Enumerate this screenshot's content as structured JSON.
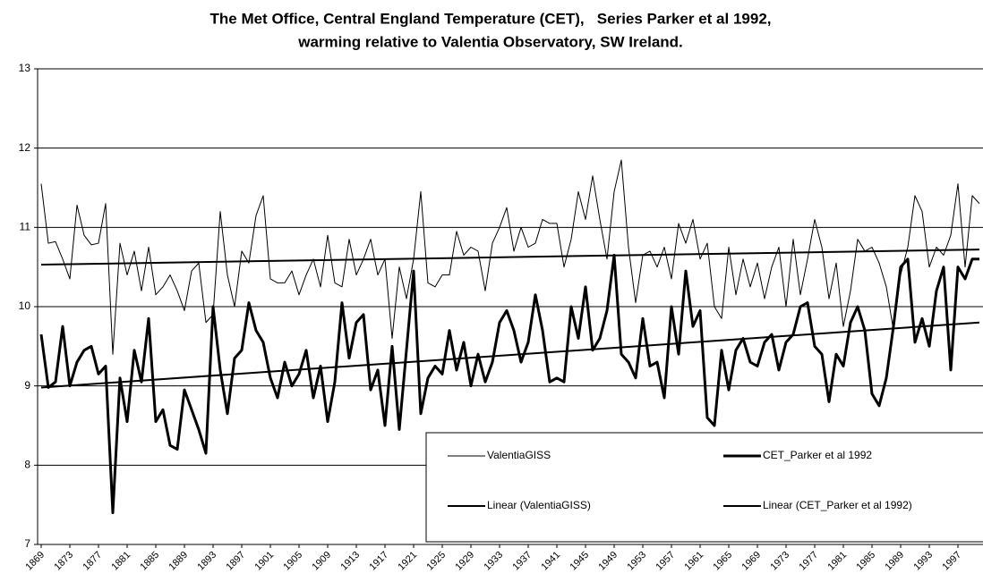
{
  "chart_data": {
    "type": "line",
    "title": [
      "The Met Office, Central England Temperature (CET),   Series Parker et al 1992,",
      "warming relative to Valentia Observatory, SW Ireland."
    ],
    "x": [
      1869,
      1870,
      1871,
      1872,
      1873,
      1874,
      1875,
      1876,
      1877,
      1878,
      1879,
      1880,
      1881,
      1882,
      1883,
      1884,
      1885,
      1886,
      1887,
      1888,
      1889,
      1890,
      1891,
      1892,
      1893,
      1894,
      1895,
      1896,
      1897,
      1898,
      1899,
      1900,
      1901,
      1902,
      1903,
      1904,
      1905,
      1906,
      1907,
      1908,
      1909,
      1910,
      1911,
      1912,
      1913,
      1914,
      1915,
      1916,
      1917,
      1918,
      1919,
      1920,
      1921,
      1922,
      1923,
      1924,
      1925,
      1926,
      1927,
      1928,
      1929,
      1930,
      1931,
      1932,
      1933,
      1934,
      1935,
      1936,
      1937,
      1938,
      1939,
      1940,
      1941,
      1942,
      1943,
      1944,
      1945,
      1946,
      1947,
      1948,
      1949,
      1950,
      1951,
      1952,
      1953,
      1954,
      1955,
      1956,
      1957,
      1958,
      1959,
      1960,
      1961,
      1962,
      1963,
      1964,
      1965,
      1966,
      1967,
      1968,
      1969,
      1970,
      1971,
      1972,
      1973,
      1974,
      1975,
      1976,
      1977,
      1978,
      1979,
      1980,
      1981,
      1982,
      1983,
      1984,
      1985,
      1986,
      1987,
      1988,
      1989,
      1990,
      1991,
      1992,
      1993,
      1994,
      1995,
      1996,
      1997,
      1998,
      1999,
      2000
    ],
    "series": [
      {
        "name": "ValentiaGISS",
        "color": "#000000",
        "line_width": 1,
        "values": [
          11.55,
          10.8,
          10.82,
          10.6,
          10.35,
          11.28,
          10.9,
          10.78,
          10.8,
          11.3,
          9.4,
          10.8,
          10.4,
          10.7,
          10.2,
          10.75,
          10.15,
          10.25,
          10.4,
          10.2,
          9.95,
          10.45,
          10.55,
          9.8,
          9.9,
          11.2,
          10.4,
          10.0,
          10.7,
          10.55,
          11.15,
          11.4,
          10.35,
          10.3,
          10.3,
          10.45,
          10.15,
          10.4,
          10.6,
          10.25,
          10.9,
          10.3,
          10.25,
          10.85,
          10.4,
          10.6,
          10.85,
          10.4,
          10.6,
          9.6,
          10.5,
          10.1,
          10.6,
          11.45,
          10.3,
          10.25,
          10.4,
          10.4,
          10.95,
          10.65,
          10.75,
          10.7,
          10.2,
          10.8,
          11.0,
          11.25,
          10.7,
          11.0,
          10.75,
          10.8,
          11.1,
          11.05,
          11.05,
          10.5,
          10.85,
          11.45,
          11.1,
          11.65,
          11.1,
          10.6,
          11.45,
          11.85,
          10.75,
          10.05,
          10.65,
          10.7,
          10.5,
          10.75,
          10.35,
          11.05,
          10.8,
          11.1,
          10.6,
          10.8,
          10.0,
          9.85,
          10.75,
          10.15,
          10.6,
          10.25,
          10.55,
          10.1,
          10.5,
          10.75,
          10.0,
          10.85,
          10.15,
          10.6,
          11.1,
          10.75,
          10.1,
          10.55,
          9.75,
          10.2,
          10.85,
          10.7,
          10.75,
          10.55,
          10.25,
          9.7,
          10.4,
          10.75,
          11.4,
          11.2,
          10.5,
          10.75,
          10.65,
          10.9,
          11.55,
          10.5,
          11.4,
          11.3
        ]
      },
      {
        "name": "CET_Parker et al 1992",
        "color": "#000000",
        "line_width": 3,
        "values": [
          9.65,
          8.98,
          9.05,
          9.75,
          9.0,
          9.3,
          9.45,
          9.5,
          9.15,
          9.25,
          7.4,
          9.1,
          8.55,
          9.45,
          9.05,
          9.85,
          8.55,
          8.7,
          8.25,
          8.2,
          8.95,
          8.7,
          8.45,
          8.15,
          10.0,
          9.2,
          8.65,
          9.35,
          9.45,
          10.05,
          9.7,
          9.55,
          9.1,
          8.85,
          9.3,
          9.0,
          9.15,
          9.45,
          8.85,
          9.25,
          8.55,
          9.05,
          10.05,
          9.35,
          9.8,
          9.9,
          8.95,
          9.2,
          8.5,
          9.5,
          8.45,
          9.45,
          10.45,
          8.65,
          9.1,
          9.25,
          9.15,
          9.7,
          9.2,
          9.55,
          9.0,
          9.4,
          9.05,
          9.3,
          9.8,
          9.95,
          9.7,
          9.3,
          9.55,
          10.15,
          9.7,
          9.05,
          9.1,
          9.05,
          10.0,
          9.6,
          10.25,
          9.45,
          9.6,
          9.95,
          10.65,
          9.4,
          9.3,
          9.1,
          9.85,
          9.25,
          9.3,
          8.85,
          10.0,
          9.4,
          10.45,
          9.75,
          9.95,
          8.6,
          8.5,
          9.45,
          8.95,
          9.45,
          9.6,
          9.3,
          9.25,
          9.55,
          9.65,
          9.2,
          9.55,
          9.65,
          10.0,
          10.05,
          9.5,
          9.4,
          8.8,
          9.4,
          9.25,
          9.8,
          10.0,
          9.7,
          8.9,
          8.75,
          9.1,
          9.75,
          10.5,
          10.6,
          9.55,
          9.85,
          9.5,
          10.2,
          10.5,
          9.2,
          10.5,
          10.35,
          10.6,
          10.6
        ]
      },
      {
        "name": "Linear (ValentiaGISS)",
        "color": "#000000",
        "line_width": 2,
        "x": [
          1869,
          2000
        ],
        "values": [
          10.53,
          10.72
        ]
      },
      {
        "name": "Linear (CET_Parker et al 1992)",
        "color": "#000000",
        "line_width": 2,
        "x": [
          1869,
          2000
        ],
        "values": [
          8.98,
          9.8
        ]
      }
    ],
    "xlim": [
      1869,
      2000
    ],
    "xticks": [
      1869,
      1873,
      1877,
      1881,
      1885,
      1889,
      1893,
      1897,
      1901,
      1905,
      1909,
      1913,
      1917,
      1921,
      1925,
      1929,
      1933,
      1937,
      1941,
      1945,
      1949,
      1953,
      1957,
      1961,
      1965,
      1969,
      1973,
      1977,
      1981,
      1985,
      1989,
      1993,
      1997
    ],
    "ylim": [
      7,
      13
    ],
    "yticks": [
      7,
      8,
      9,
      10,
      11,
      12,
      13
    ],
    "grid": true
  }
}
